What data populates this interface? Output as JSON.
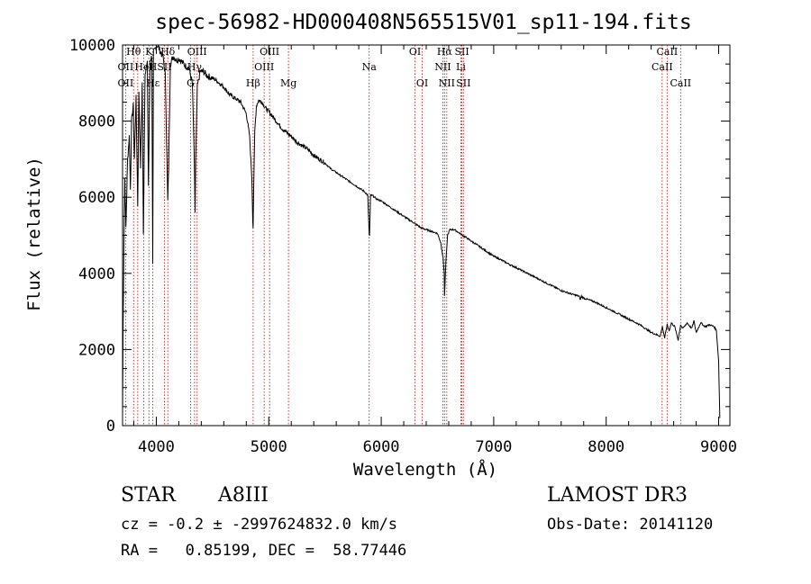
{
  "chart_data": {
    "type": "line",
    "title": "spec-56982-HD000408N565515V01_sp11-194.fits",
    "xlabel": "Wavelength (Å)",
    "ylabel": "Flux (relative)",
    "xlim": [
      3700,
      9100
    ],
    "ylim": [
      0,
      10000
    ],
    "xticks": [
      4000,
      5000,
      6000,
      7000,
      8000,
      9000
    ],
    "yticks": [
      0,
      2000,
      4000,
      6000,
      8000,
      10000
    ],
    "xtick_labels": [
      "4000",
      "5000",
      "6000",
      "7000",
      "8000",
      "9000"
    ],
    "ytick_labels": [
      "0",
      "2000",
      "4000",
      "6000",
      "8000",
      "10000"
    ],
    "series": [
      {
        "name": "spectrum",
        "x": [
          3700,
          3705,
          3712,
          3720,
          3730,
          3745,
          3760,
          3770,
          3780,
          3795,
          3805,
          3820,
          3835,
          3845,
          3860,
          3875,
          3885,
          3900,
          3920,
          3930,
          3945,
          3960,
          3968,
          3975,
          3990,
          4010,
          4040,
          4060,
          4080,
          4095,
          4102,
          4110,
          4125,
          4150,
          4180,
          4200,
          4230,
          4260,
          4290,
          4320,
          4330,
          4340,
          4345,
          4350,
          4365,
          4390,
          4420,
          4450,
          4480,
          4520,
          4560,
          4600,
          4650,
          4700,
          4750,
          4800,
          4830,
          4850,
          4858,
          4861,
          4866,
          4875,
          4890,
          4910,
          4940,
          4970,
          5000,
          5040,
          5080,
          5120,
          5160,
          5200,
          5250,
          5300,
          5350,
          5400,
          5450,
          5500,
          5550,
          5600,
          5650,
          5700,
          5750,
          5800,
          5850,
          5880,
          5893,
          5896,
          5905,
          5920,
          5960,
          6000,
          6050,
          6100,
          6150,
          6200,
          6250,
          6280,
          6300,
          6330,
          6350,
          6400,
          6450,
          6500,
          6530,
          6550,
          6560,
          6563,
          6567,
          6575,
          6590,
          6610,
          6650,
          6700,
          6750,
          6800,
          6850,
          6900,
          6950,
          7000,
          7050,
          7100,
          7150,
          7200,
          7300,
          7400,
          7500,
          7600,
          7700,
          7760,
          7770,
          7780,
          7800,
          7900,
          8000,
          8100,
          8200,
          8300,
          8400,
          8480,
          8500,
          8520,
          8542,
          8560,
          8580,
          8610,
          8640,
          8662,
          8680,
          8720,
          8760,
          8780,
          8800,
          8840,
          8880,
          8920,
          8960,
          8980,
          9000,
          9010
        ],
        "y": [
          300,
          2600,
          4800,
          6500,
          5200,
          7000,
          7600,
          6200,
          8000,
          8400,
          7000,
          8600,
          5800,
          8800,
          6800,
          9000,
          5000,
          9300,
          9500,
          6300,
          9600,
          9700,
          4200,
          9800,
          9900,
          10000,
          9800,
          9700,
          9200,
          7000,
          5900,
          6800,
          9500,
          9700,
          9600,
          9650,
          9550,
          9450,
          9400,
          9000,
          8000,
          6600,
          5600,
          6900,
          8900,
          9300,
          9300,
          9200,
          9150,
          9100,
          9000,
          8900,
          8700,
          8600,
          8500,
          8200,
          7600,
          6500,
          5400,
          5200,
          6200,
          7700,
          8400,
          8550,
          8500,
          8350,
          8250,
          8100,
          7950,
          7800,
          7700,
          7600,
          7450,
          7350,
          7250,
          7100,
          7000,
          6900,
          6750,
          6650,
          6550,
          6450,
          6350,
          6250,
          6150,
          6050,
          5000,
          5000,
          6050,
          6050,
          5950,
          5900,
          5800,
          5700,
          5600,
          5500,
          5400,
          5350,
          5300,
          5250,
          5200,
          5150,
          5100,
          5050,
          4800,
          4400,
          4000,
          3400,
          3700,
          4300,
          5000,
          5150,
          5150,
          5050,
          4950,
          4850,
          4750,
          4650,
          4550,
          4450,
          4380,
          4300,
          4220,
          4150,
          4000,
          3850,
          3700,
          3550,
          3450,
          3400,
          3300,
          3400,
          3350,
          3250,
          3100,
          2950,
          2800,
          2650,
          2450,
          2350,
          2600,
          2300,
          2650,
          2500,
          2700,
          2600,
          2250,
          2650,
          2550,
          2700,
          2550,
          2750,
          2450,
          2700,
          2600,
          2650,
          2600,
          2500,
          1700,
          200
        ]
      }
    ],
    "line_labels": [
      {
        "text": "Hα",
        "x": 6563,
        "row": 1
      },
      {
        "text": "NII",
        "x": 6548,
        "row": 2
      },
      {
        "text": "NII",
        "x": 6583,
        "row": 3
      },
      {
        "text": "SII",
        "x": 6717,
        "row": 1
      },
      {
        "text": "Li",
        "x": 6708,
        "row": 2
      },
      {
        "text": "SII",
        "x": 6731,
        "row": 3
      },
      {
        "text": "OI",
        "x": 6300,
        "row": 1
      },
      {
        "text": "OI",
        "x": 6364,
        "row": 3
      },
      {
        "text": "Na",
        "x": 5893,
        "row": 2
      },
      {
        "text": "Mg",
        "x": 5175,
        "row": 3
      },
      {
        "text": "OIII",
        "x": 5007,
        "row": 1
      },
      {
        "text": "OIII",
        "x": 4959,
        "row": 2
      },
      {
        "text": "Hβ",
        "x": 4861,
        "row": 3
      },
      {
        "text": "OIII",
        "x": 4363,
        "row": 1
      },
      {
        "text": "Hγ",
        "x": 4340,
        "row": 2
      },
      {
        "text": "G",
        "x": 4305,
        "row": 3
      },
      {
        "text": "Hδ",
        "x": 4102,
        "row": 1
      },
      {
        "text": "SII",
        "x": 4072,
        "row": 2
      },
      {
        "text": "K",
        "x": 3934,
        "row": 1
      },
      {
        "text": "HeI",
        "x": 3889,
        "row": 2
      },
      {
        "text": "H",
        "x": 3969,
        "row": 2
      },
      {
        "text": "Hε",
        "x": 3970,
        "row": 3
      },
      {
        "text": "Hθ",
        "x": 3798,
        "row": 1
      },
      {
        "text": "OII",
        "x": 3727,
        "row": 2
      },
      {
        "text": "OII",
        "x": 3727,
        "row": 3
      },
      {
        "text": "CaII",
        "x": 8542,
        "row": 1
      },
      {
        "text": "CaII",
        "x": 8498,
        "row": 2
      },
      {
        "text": "CaII",
        "x": 8662,
        "row": 3
      }
    ],
    "marker_lines": [
      3727,
      3798,
      3835,
      3889,
      3934,
      3969,
      4072,
      4102,
      4305,
      4340,
      4363,
      4861,
      4959,
      5007,
      5175,
      5893,
      6300,
      6364,
      6548,
      6563,
      6583,
      6708,
      6717,
      6731,
      8498,
      8542,
      8662
    ],
    "marker_color": "#cc0000",
    "line_color": "#000000"
  },
  "info": {
    "object_type": "STAR",
    "spectral_class": "A8III",
    "survey": "LAMOST DR3",
    "cz_text": "cz = -0.2 ± -2997624832.0 km/s",
    "obs_date_text": "Obs-Date: 20141120",
    "radec_text": "RA =   0.85199, DEC =  58.77446"
  }
}
